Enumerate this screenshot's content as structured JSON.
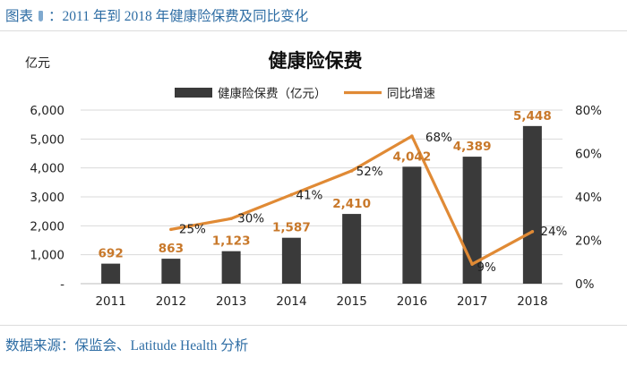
{
  "header": {
    "prefix": "图表",
    "title": "：2011 年到 2018 年健康险保费及同比变化"
  },
  "footer": {
    "source": "数据来源：保监会、Latitude Health 分析"
  },
  "chart_data": {
    "type": "bar",
    "title": "健康险保费",
    "ylabel": "亿元",
    "categories": [
      "2011",
      "2012",
      "2013",
      "2014",
      "2015",
      "2016",
      "2017",
      "2018"
    ],
    "ylim": [
      0,
      6000
    ],
    "y_ticks": [
      "-",
      "1,000",
      "2,000",
      "3,000",
      "4,000",
      "5,000",
      "6,000"
    ],
    "y2lim": [
      0,
      80
    ],
    "y2_ticks": [
      "0%",
      "20%",
      "40%",
      "60%",
      "80%"
    ],
    "legend_position": "top-center",
    "series": [
      {
        "name": "健康险保费（亿元）",
        "kind": "bar",
        "color": "#3a3a3a",
        "values": [
          692,
          863,
          1123,
          1587,
          2410,
          4042,
          4389,
          5448
        ],
        "labels": [
          "692",
          "863",
          "1,123",
          "1,587",
          "2,410",
          "4,042",
          "4,389",
          "5,448"
        ],
        "label_color": "#c8782a"
      },
      {
        "name": "同比增速",
        "kind": "line",
        "axis": "right",
        "color": "#e08a35",
        "values": [
          null,
          25,
          30,
          41,
          52,
          68,
          9,
          24
        ],
        "labels": [
          "",
          "25%",
          "30%",
          "41%",
          "52%",
          "68%",
          "9%",
          "24%"
        ]
      }
    ]
  }
}
